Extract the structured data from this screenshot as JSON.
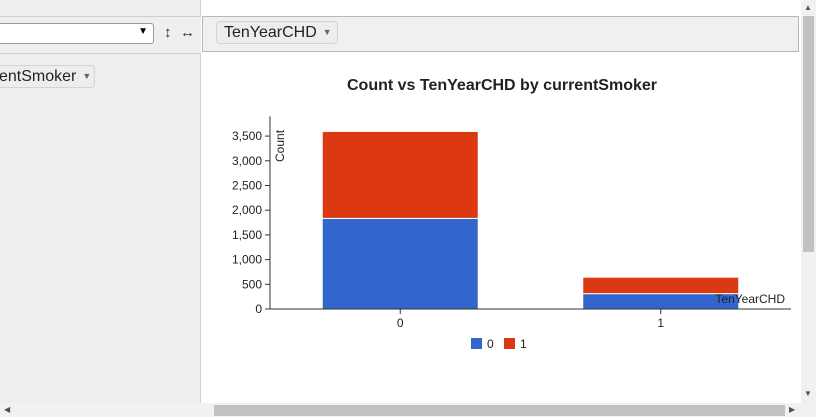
{
  "toolbar": {
    "aggregation_value": "",
    "swap_vertical_label": "↕",
    "swap_horizontal_label": "↔"
  },
  "row_pill": {
    "label": "entSmoker"
  },
  "col_pill": {
    "label": "TenYearCHD"
  },
  "chart_data": {
    "type": "bar",
    "stacked": true,
    "title": "Count vs TenYearCHD by currentSmoker",
    "xlabel": "TenYearCHD",
    "ylabel": "Count",
    "categories": [
      "0",
      "1"
    ],
    "series": [
      {
        "name": "0",
        "color": "#3366cc",
        "values": [
          1834,
          311
        ]
      },
      {
        "name": "1",
        "color": "#dc3912",
        "values": [
          1760,
          333
        ]
      }
    ],
    "ylim": [
      0,
      3900
    ],
    "yticks": [
      0,
      500,
      1000,
      1500,
      2000,
      2500,
      3000,
      3500
    ],
    "ytick_labels": [
      "0",
      "500",
      "1,000",
      "1,500",
      "2,000",
      "2,500",
      "3,000",
      "3,500"
    ],
    "grid": false,
    "legend_position": "bottom"
  }
}
